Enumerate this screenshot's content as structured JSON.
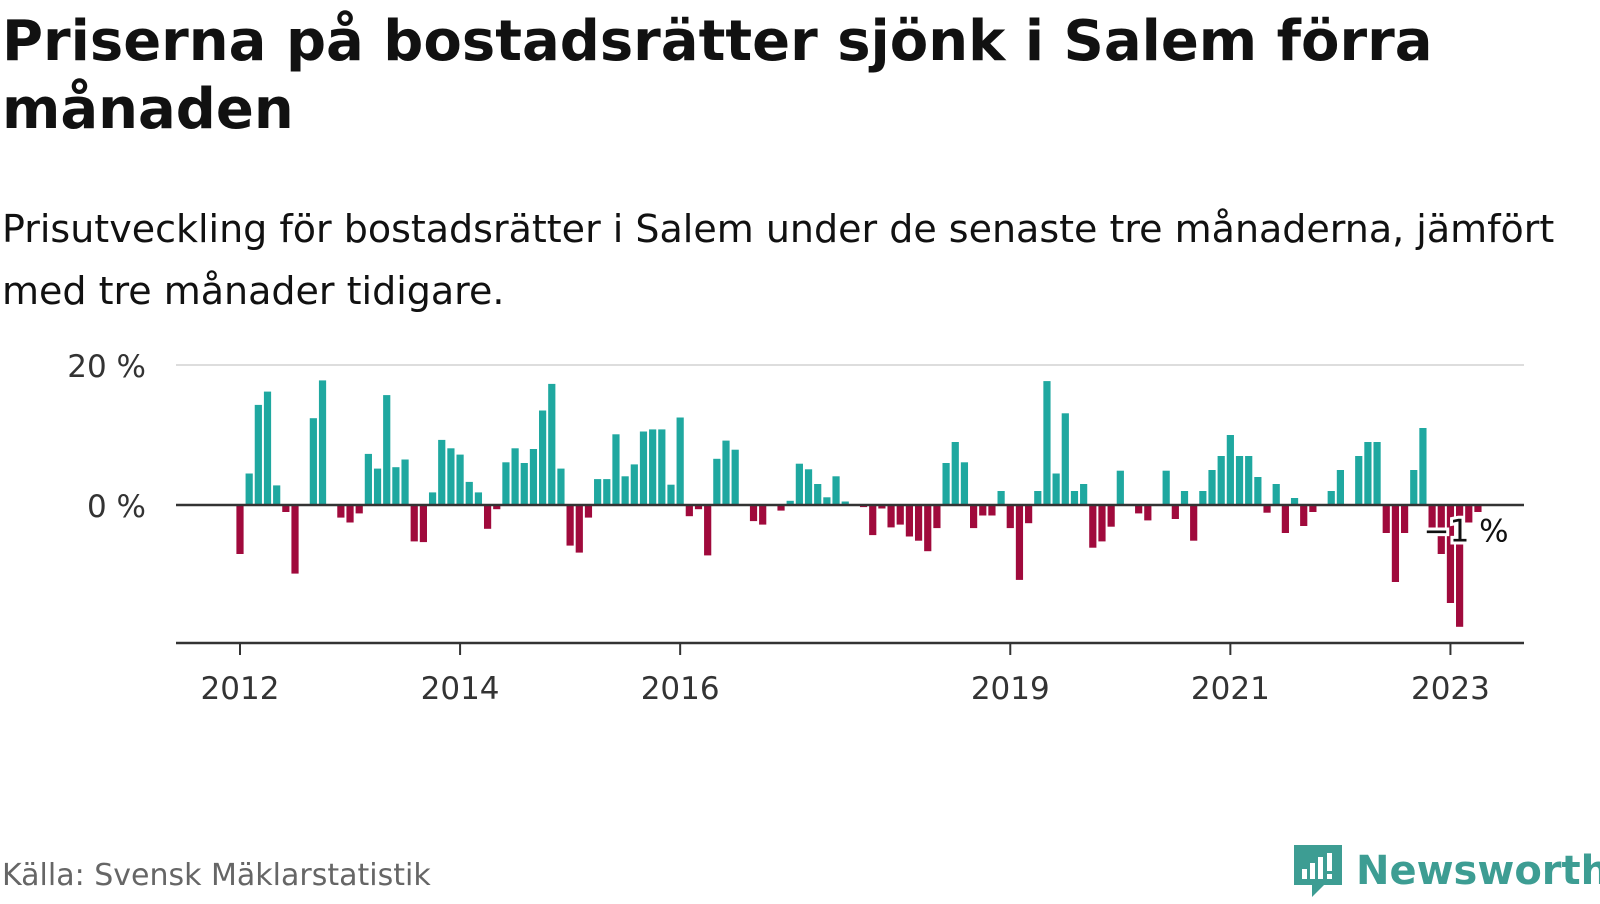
{
  "title": "Priserna på bostadsrätter sjönk i Salem förra månaden",
  "subtitle": "Prisutveckling för bostadsrätter i Salem under de senaste tre månaderna, jämfört med tre månader tidigare.",
  "source": "Källa: Svensk Mäklarstatistik",
  "brand": {
    "name": "Newsworthy",
    "icon": "newsworthy-logo-icon"
  },
  "colors": {
    "positive": "#1fa8a0",
    "negative": "#a00a3c",
    "grid": "#dddddd",
    "axis": "#333333",
    "text": "#111111"
  },
  "chart_data": {
    "type": "bar",
    "title": "Priserna på bostadsrätter sjönk i Salem förra månaden",
    "ylabel": "",
    "xlabel": "",
    "y_unit": "%",
    "ylim": [
      -20,
      20
    ],
    "y_ticks": [
      {
        "value": 0,
        "label": "0 %"
      },
      {
        "value": 20,
        "label": "20 %"
      }
    ],
    "x_ticks": [
      {
        "value": "2012-01",
        "label": "2012"
      },
      {
        "value": "2014-01",
        "label": "2014"
      },
      {
        "value": "2016-01",
        "label": "2016"
      },
      {
        "value": "2019-01",
        "label": "2019"
      },
      {
        "value": "2021-01",
        "label": "2021"
      },
      {
        "value": "2023-01",
        "label": "2023"
      }
    ],
    "grid": true,
    "annotation": {
      "x": "2023-02",
      "label": "−1 %"
    },
    "series": [
      {
        "points": [
          {
            "x": "2012-01",
            "y": -7.0
          },
          {
            "x": "2012-02",
            "y": 4.5
          },
          {
            "x": "2012-03",
            "y": 14.3
          },
          {
            "x": "2012-04",
            "y": 16.2
          },
          {
            "x": "2012-05",
            "y": 2.8
          },
          {
            "x": "2012-06",
            "y": -1.0
          },
          {
            "x": "2012-07",
            "y": -9.8
          },
          {
            "x": "2012-09",
            "y": 12.4
          },
          {
            "x": "2012-10",
            "y": 17.8
          },
          {
            "x": "2012-12",
            "y": -1.8
          },
          {
            "x": "2013-01",
            "y": -2.5
          },
          {
            "x": "2013-02",
            "y": -1.2
          },
          {
            "x": "2013-03",
            "y": 7.3
          },
          {
            "x": "2013-04",
            "y": 5.2
          },
          {
            "x": "2013-05",
            "y": 15.7
          },
          {
            "x": "2013-06",
            "y": 5.4
          },
          {
            "x": "2013-07",
            "y": 6.5
          },
          {
            "x": "2013-08",
            "y": -5.2
          },
          {
            "x": "2013-09",
            "y": -5.3
          },
          {
            "x": "2013-10",
            "y": 1.8
          },
          {
            "x": "2013-11",
            "y": 9.3
          },
          {
            "x": "2013-12",
            "y": 8.1
          },
          {
            "x": "2014-01",
            "y": 7.2
          },
          {
            "x": "2014-02",
            "y": 3.3
          },
          {
            "x": "2014-03",
            "y": 1.8
          },
          {
            "x": "2014-04",
            "y": -3.4
          },
          {
            "x": "2014-05",
            "y": -0.6
          },
          {
            "x": "2014-06",
            "y": 6.1
          },
          {
            "x": "2014-07",
            "y": 8.1
          },
          {
            "x": "2014-08",
            "y": 6.0
          },
          {
            "x": "2014-09",
            "y": 8.0
          },
          {
            "x": "2014-10",
            "y": 13.5
          },
          {
            "x": "2014-11",
            "y": 17.3
          },
          {
            "x": "2014-12",
            "y": 5.2
          },
          {
            "x": "2015-01",
            "y": -5.8
          },
          {
            "x": "2015-02",
            "y": -6.8
          },
          {
            "x": "2015-03",
            "y": -1.8
          },
          {
            "x": "2015-04",
            "y": 3.7
          },
          {
            "x": "2015-05",
            "y": 3.7
          },
          {
            "x": "2015-06",
            "y": 10.1
          },
          {
            "x": "2015-07",
            "y": 4.1
          },
          {
            "x": "2015-08",
            "y": 5.8
          },
          {
            "x": "2015-09",
            "y": 10.5
          },
          {
            "x": "2015-10",
            "y": 10.8
          },
          {
            "x": "2015-11",
            "y": 10.8
          },
          {
            "x": "2015-12",
            "y": 2.9
          },
          {
            "x": "2016-01",
            "y": 12.5
          },
          {
            "x": "2016-02",
            "y": -1.6
          },
          {
            "x": "2016-03",
            "y": -0.6
          },
          {
            "x": "2016-04",
            "y": -7.2
          },
          {
            "x": "2016-05",
            "y": 6.6
          },
          {
            "x": "2016-06",
            "y": 9.2
          },
          {
            "x": "2016-07",
            "y": 7.9
          },
          {
            "x": "2016-09",
            "y": -2.3
          },
          {
            "x": "2016-10",
            "y": -2.8
          },
          {
            "x": "2016-12",
            "y": -0.8
          },
          {
            "x": "2017-01",
            "y": 0.6
          },
          {
            "x": "2017-02",
            "y": 5.9
          },
          {
            "x": "2017-03",
            "y": 5.1
          },
          {
            "x": "2017-04",
            "y": 3.0
          },
          {
            "x": "2017-05",
            "y": 1.1
          },
          {
            "x": "2017-06",
            "y": 4.1
          },
          {
            "x": "2017-07",
            "y": 0.5
          },
          {
            "x": "2017-09",
            "y": -0.3
          },
          {
            "x": "2017-10",
            "y": -4.3
          },
          {
            "x": "2017-11",
            "y": -0.5
          },
          {
            "x": "2017-12",
            "y": -3.2
          },
          {
            "x": "2018-01",
            "y": -2.8
          },
          {
            "x": "2018-02",
            "y": -4.5
          },
          {
            "x": "2018-03",
            "y": -5.1
          },
          {
            "x": "2018-04",
            "y": -6.6
          },
          {
            "x": "2018-05",
            "y": -3.3
          },
          {
            "x": "2018-06",
            "y": 6.0
          },
          {
            "x": "2018-07",
            "y": 9.0
          },
          {
            "x": "2018-08",
            "y": 6.1
          },
          {
            "x": "2018-09",
            "y": -3.3
          },
          {
            "x": "2018-10",
            "y": -1.5
          },
          {
            "x": "2018-11",
            "y": -1.5
          },
          {
            "x": "2018-12",
            "y": 2.0
          },
          {
            "x": "2019-01",
            "y": -3.3
          },
          {
            "x": "2019-02",
            "y": -10.7
          },
          {
            "x": "2019-03",
            "y": -2.6
          },
          {
            "x": "2019-04",
            "y": 2.0
          },
          {
            "x": "2019-05",
            "y": 17.7
          },
          {
            "x": "2019-06",
            "y": 4.5
          },
          {
            "x": "2019-07",
            "y": 13.1
          },
          {
            "x": "2019-08",
            "y": 2.0
          },
          {
            "x": "2019-09",
            "y": 3.0
          },
          {
            "x": "2019-10",
            "y": -6.1
          },
          {
            "x": "2019-11",
            "y": -5.2
          },
          {
            "x": "2019-12",
            "y": -3.1
          },
          {
            "x": "2020-01",
            "y": 4.9
          },
          {
            "x": "2020-03",
            "y": -1.2
          },
          {
            "x": "2020-04",
            "y": -2.2
          },
          {
            "x": "2020-06",
            "y": 4.9
          },
          {
            "x": "2020-07",
            "y": -2.0
          },
          {
            "x": "2020-08",
            "y": 2.0
          },
          {
            "x": "2020-09",
            "y": -5.1
          },
          {
            "x": "2020-10",
            "y": 2.0
          },
          {
            "x": "2020-11",
            "y": 5.0
          },
          {
            "x": "2020-12",
            "y": 7.0
          },
          {
            "x": "2021-01",
            "y": 10.0
          },
          {
            "x": "2021-02",
            "y": 7.0
          },
          {
            "x": "2021-03",
            "y": 7.0
          },
          {
            "x": "2021-04",
            "y": 4.0
          },
          {
            "x": "2021-05",
            "y": -1.1
          },
          {
            "x": "2021-06",
            "y": 3.0
          },
          {
            "x": "2021-07",
            "y": -4.0
          },
          {
            "x": "2021-08",
            "y": 1.0
          },
          {
            "x": "2021-09",
            "y": -3.0
          },
          {
            "x": "2021-10",
            "y": -1.0
          },
          {
            "x": "2021-12",
            "y": 2.0
          },
          {
            "x": "2022-01",
            "y": 5.0
          },
          {
            "x": "2022-03",
            "y": 7.0
          },
          {
            "x": "2022-04",
            "y": 9.0
          },
          {
            "x": "2022-05",
            "y": 9.0
          },
          {
            "x": "2022-06",
            "y": -4.0
          },
          {
            "x": "2022-07",
            "y": -11.0
          },
          {
            "x": "2022-08",
            "y": -4.0
          },
          {
            "x": "2022-09",
            "y": 5.0
          },
          {
            "x": "2022-10",
            "y": 11.0
          },
          {
            "x": "2022-11",
            "y": -4.0
          },
          {
            "x": "2022-12",
            "y": -7.0
          },
          {
            "x": "2023-01",
            "y": -14.0
          },
          {
            "x": "2023-02",
            "y": -17.4
          },
          {
            "x": "2023-03",
            "y": -2.5
          },
          {
            "x": "2023-04",
            "y": -1.0
          }
        ]
      }
    ]
  }
}
